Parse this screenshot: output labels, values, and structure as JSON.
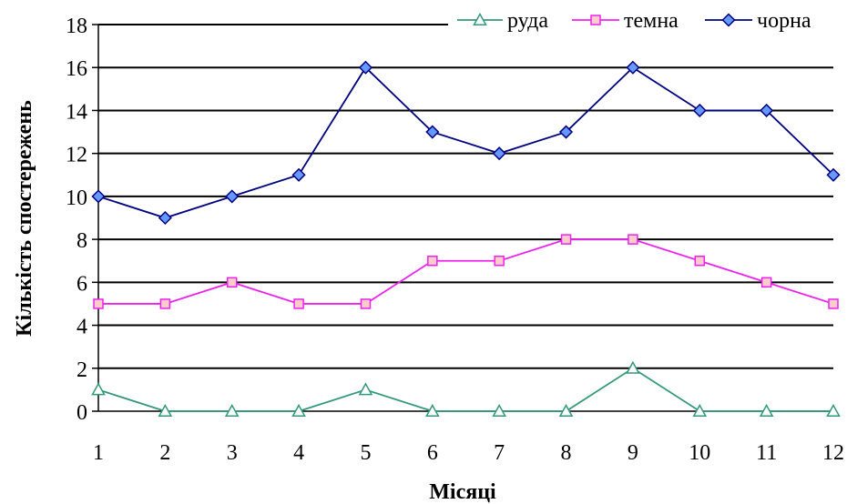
{
  "chart_data": {
    "type": "line",
    "x": [
      1,
      2,
      3,
      4,
      5,
      6,
      7,
      8,
      9,
      10,
      11,
      12
    ],
    "series": [
      {
        "name": "руда",
        "values": [
          1,
          0,
          0,
          0,
          1,
          0,
          0,
          0,
          2,
          0,
          0,
          0
        ],
        "color": "#339977",
        "marker": "triangle",
        "fill": "#ffffff"
      },
      {
        "name": "темна",
        "values": [
          5,
          5,
          6,
          5,
          5,
          7,
          7,
          8,
          8,
          7,
          6,
          5
        ],
        "color": "#ee22ee",
        "marker": "square",
        "fill": "#ffcccc"
      },
      {
        "name": "чорна",
        "values": [
          10,
          9,
          10,
          11,
          16,
          13,
          12,
          13,
          16,
          14,
          14,
          11
        ],
        "color": "#000080",
        "marker": "diamond",
        "fill": "#6699ff"
      }
    ],
    "xlabel": "Місяці",
    "ylabel": "Кількість спостережень",
    "ylim": [
      0,
      18
    ],
    "yticks": [
      0,
      2,
      4,
      6,
      8,
      10,
      12,
      14,
      16,
      18
    ],
    "grid": true,
    "legend_position": "top-right"
  }
}
